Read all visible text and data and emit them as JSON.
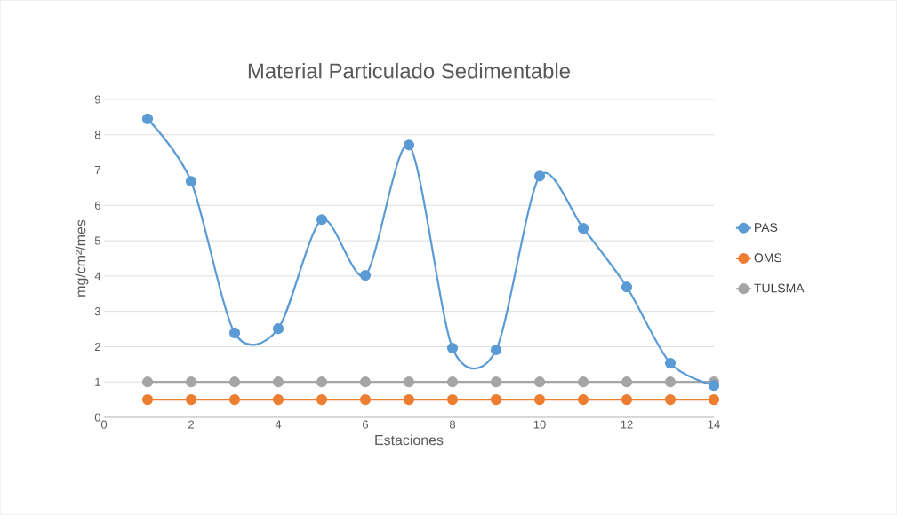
{
  "chart_data": {
    "type": "line",
    "title": "Material Particulado Sedimentable",
    "xlabel": "Estaciones",
    "ylabel": "mg/cm²/mes",
    "x": [
      1,
      2,
      3,
      4,
      5,
      6,
      7,
      8,
      9,
      10,
      11,
      12,
      13,
      14
    ],
    "series": [
      {
        "name": "PAS",
        "color": "#5b9bd5",
        "values": [
          8.45,
          6.68,
          2.39,
          2.51,
          5.6,
          4.02,
          7.71,
          1.96,
          1.91,
          6.83,
          5.35,
          3.69,
          1.53,
          0.9
        ]
      },
      {
        "name": "OMS",
        "color": "#ed7d31",
        "values": [
          0.5,
          0.5,
          0.5,
          0.5,
          0.5,
          0.5,
          0.5,
          0.5,
          0.5,
          0.5,
          0.5,
          0.5,
          0.5,
          0.5
        ]
      },
      {
        "name": "TULSMA",
        "color": "#a5a5a5",
        "values": [
          1,
          1,
          1,
          1,
          1,
          1,
          1,
          1,
          1,
          1,
          1,
          1,
          1,
          1
        ]
      }
    ],
    "xlim": [
      0,
      14
    ],
    "xticks": [
      0,
      2,
      4,
      6,
      8,
      10,
      12,
      14
    ],
    "ylim": [
      0,
      9
    ],
    "yticks": [
      0,
      1,
      2,
      3,
      4,
      5,
      6,
      7,
      8,
      9
    ],
    "grid": "y",
    "legend": "right",
    "marker": "circle",
    "line_style": "solid"
  }
}
